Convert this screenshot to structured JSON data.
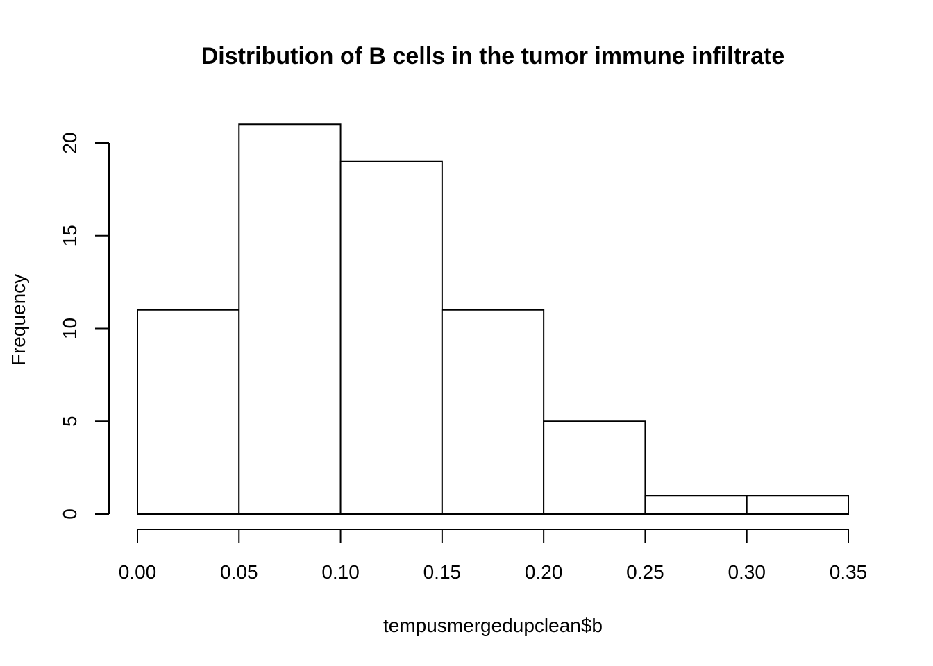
{
  "chart_data": {
    "type": "bar",
    "subtype": "histogram",
    "title": "Distribution of B cells in the tumor immune infiltrate",
    "xlabel": "tempusmergedupclean$b",
    "ylabel": "Frequency",
    "bins": [
      {
        "start": 0.0,
        "end": 0.05,
        "count": 11
      },
      {
        "start": 0.05,
        "end": 0.1,
        "count": 21
      },
      {
        "start": 0.1,
        "end": 0.15,
        "count": 19
      },
      {
        "start": 0.15,
        "end": 0.2,
        "count": 11
      },
      {
        "start": 0.2,
        "end": 0.25,
        "count": 5
      },
      {
        "start": 0.25,
        "end": 0.3,
        "count": 1
      },
      {
        "start": 0.3,
        "end": 0.35,
        "count": 1
      }
    ],
    "xlim": [
      0.0,
      0.35
    ],
    "ylim": [
      0,
      21
    ],
    "x_ticks": [
      {
        "value": 0.0,
        "label": "0.00"
      },
      {
        "value": 0.05,
        "label": "0.05"
      },
      {
        "value": 0.1,
        "label": "0.10"
      },
      {
        "value": 0.15,
        "label": "0.15"
      },
      {
        "value": 0.2,
        "label": "0.20"
      },
      {
        "value": 0.25,
        "label": "0.25"
      },
      {
        "value": 0.3,
        "label": "0.30"
      },
      {
        "value": 0.35,
        "label": "0.35"
      }
    ],
    "y_ticks": [
      {
        "value": 0,
        "label": "0"
      },
      {
        "value": 5,
        "label": "5"
      },
      {
        "value": 10,
        "label": "10"
      },
      {
        "value": 15,
        "label": "15"
      },
      {
        "value": 20,
        "label": "20"
      }
    ],
    "grid": false,
    "legend": "none",
    "bar_fill": "#ffffff",
    "bar_stroke": "#000000"
  }
}
